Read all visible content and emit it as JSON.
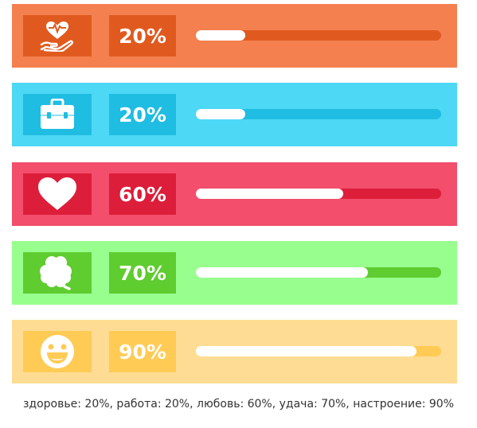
{
  "stats": [
    {
      "key": "health",
      "icon": "heart-hand-icon",
      "percent_label": "20%",
      "value": 0.2,
      "colors": {
        "card": "#F4804F",
        "box": "#E05A20",
        "track": "#E05A20"
      }
    },
    {
      "key": "work",
      "icon": "briefcase-icon",
      "percent_label": "20%",
      "value": 0.2,
      "colors": {
        "card": "#4DD8F5",
        "box": "#1FBDE1",
        "track": "#1FBDE1"
      }
    },
    {
      "key": "love",
      "icon": "heart-icon",
      "percent_label": "60%",
      "value": 0.6,
      "colors": {
        "card": "#F34E6C",
        "box": "#DC1E3B",
        "track": "#DC1E3B"
      }
    },
    {
      "key": "luck",
      "icon": "clover-icon",
      "percent_label": "70%",
      "value": 0.7,
      "colors": {
        "card": "#98FF8E",
        "box": "#5FCC30",
        "track": "#5FCC30"
      }
    },
    {
      "key": "mood",
      "icon": "smiley-icon",
      "percent_label": "90%",
      "value": 0.9,
      "colors": {
        "card": "#FFDC94",
        "box": "#FFCB55",
        "track": "#FFCB55"
      }
    }
  ],
  "caption": "здоровье: 20%, работа: 20%, любовь: 60%, удача: 70%, настроение: 90%"
}
